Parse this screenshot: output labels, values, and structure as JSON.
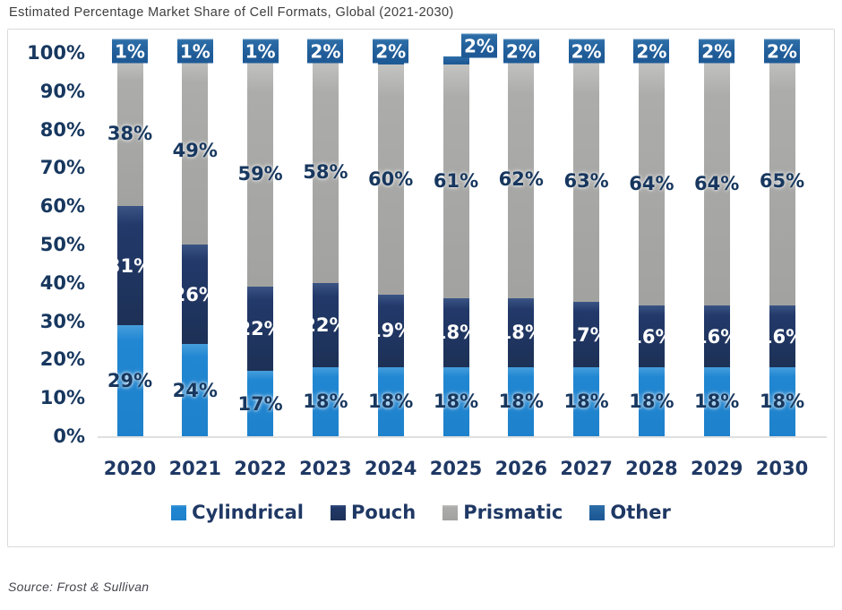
{
  "title": "Estimated Percentage Market Share of Cell Formats, Global (2021-2030)",
  "source": "Source: Frost & Sullivan",
  "colors": {
    "cylindrical": "#1f86d1",
    "pouch": "#1f3864",
    "prismatic": "#a6a6a4",
    "other": "#1e5a96",
    "axis_text": "#17375e",
    "category_text": "#1f3864",
    "title_text": "#3e3e3e",
    "source_text": "#45454f"
  },
  "chart_data": {
    "type": "bar",
    "stacked": true,
    "title": "Estimated Percentage Market Share of Cell Formats, Global (2021-2030)",
    "categories": [
      "2020",
      "2021",
      "2022",
      "2023",
      "2024",
      "2025",
      "2026",
      "2027",
      "2028",
      "2029",
      "2030"
    ],
    "series": [
      {
        "name": "Cylindrical",
        "color": "#1f86d1",
        "label_color": "navy",
        "values": [
          29,
          24,
          17,
          18,
          18,
          18,
          18,
          18,
          18,
          18,
          18
        ]
      },
      {
        "name": "Pouch",
        "color": "#1f3864",
        "label_color": "white",
        "values": [
          31,
          26,
          22,
          22,
          19,
          18,
          18,
          17,
          16,
          16,
          16
        ]
      },
      {
        "name": "Prismatic",
        "color": "#a6a6a4",
        "label_color": "navy",
        "values": [
          38,
          49,
          59,
          58,
          60,
          61,
          62,
          63,
          64,
          64,
          65
        ]
      },
      {
        "name": "Other",
        "color": "#1e5a96",
        "label_color": "white",
        "values": [
          1,
          1,
          1,
          2,
          2,
          2,
          2,
          2,
          2,
          2,
          2
        ]
      }
    ],
    "yticks": [
      "0%",
      "10%",
      "20%",
      "30%",
      "40%",
      "50%",
      "60%",
      "70%",
      "80%",
      "90%",
      "100%"
    ],
    "ylim": [
      0,
      100
    ],
    "xlabel": "",
    "ylabel": "",
    "grid": false,
    "legend_position": "bottom",
    "layout": {
      "offset_other_label_years": [
        "2025"
      ]
    }
  }
}
